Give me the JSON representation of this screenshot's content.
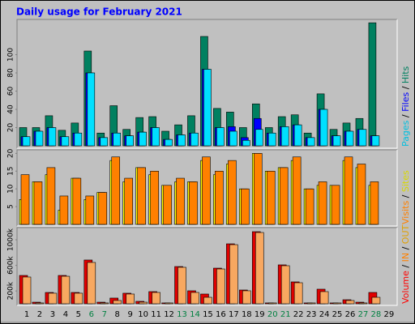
{
  "chart_data": [
    {
      "type": "bar",
      "title": "Daily usage for February 2021",
      "legend_separator": "/",
      "ylim": [
        0,
        136
      ],
      "yticks": [
        20,
        40,
        60,
        80,
        100
      ],
      "series": [
        {
          "name": "Pages",
          "color": "#00e0ff",
          "text_color": "#00c0e0",
          "values": [
            10,
            16,
            20,
            10,
            14,
            80,
            9,
            14,
            11,
            15,
            20,
            7,
            12,
            14,
            84,
            20,
            16,
            6,
            18,
            14,
            21,
            23,
            9,
            40,
            11,
            16,
            18,
            11,
            null
          ]
        },
        {
          "name": "Files",
          "color": "#0000ff",
          "text_color": "#0000ff",
          "values": [
            10,
            16,
            20,
            10,
            14,
            80,
            9,
            14,
            11,
            15,
            20,
            7,
            12,
            14,
            84,
            20,
            21,
            9,
            30,
            14,
            21,
            23,
            9,
            40,
            11,
            16,
            18,
            11,
            null
          ]
        },
        {
          "name": "Hits",
          "color": "#008060",
          "text_color": "#008060",
          "values": [
            20,
            20,
            33,
            17,
            25,
            104,
            14,
            44,
            18,
            31,
            32,
            16,
            23,
            33,
            120,
            41,
            37,
            20,
            46,
            20,
            32,
            34,
            14,
            57,
            18,
            25,
            30,
            135,
            null
          ]
        }
      ]
    },
    {
      "type": "bar",
      "ylim": [
        0,
        21
      ],
      "yticks": [
        5,
        10,
        15,
        20
      ],
      "series": [
        {
          "name": "Visits",
          "color": "#ff8000",
          "text_color": "#ff8000",
          "values": [
            14,
            12,
            16,
            8,
            13,
            8,
            9,
            19,
            13,
            16,
            15,
            11,
            13,
            12,
            19,
            15,
            18,
            10,
            20,
            15,
            16,
            19,
            10,
            12,
            11,
            19,
            17,
            12,
            null
          ]
        },
        {
          "name": "Sites",
          "color": "#ffff00",
          "text_color": "#d8d800",
          "values": [
            7,
            12,
            14,
            4,
            13,
            7,
            9,
            18,
            12,
            16,
            14,
            11,
            12,
            12,
            18,
            14,
            17,
            10,
            20,
            15,
            16,
            18,
            10,
            11,
            11,
            18,
            16,
            11,
            null
          ]
        }
      ]
    },
    {
      "type": "bar",
      "ylim": [
        0,
        1165
      ],
      "yticks": [
        {
          "value": 200,
          "label": "200k"
        },
        {
          "value": 600,
          "label": "600k"
        },
        {
          "value": 1000,
          "label": "1000k"
        }
      ],
      "in_label": {
        "text": "IN",
        "color": "#ff8000"
      },
      "categories": [
        "1",
        "2",
        "3",
        "4",
        "5",
        "6",
        "7",
        "8",
        "9",
        "10",
        "11",
        "12",
        "13",
        "14",
        "15",
        "16",
        "17",
        "18",
        "19",
        "20",
        "21",
        "22",
        "23",
        "24",
        "25",
        "26",
        "27",
        "28",
        "29"
      ],
      "weekend_indices": [
        5,
        6,
        12,
        13,
        19,
        20,
        26,
        27
      ],
      "weekday_color": "#000000",
      "weekend_color": "#008040",
      "series": [
        {
          "name": "Volume",
          "color": "#e00000",
          "text_color": "#ff0000",
          "values": [
            443,
            25,
            177,
            443,
            177,
            684,
            25,
            89,
            165,
            38,
            190,
            13,
            582,
            203,
            152,
            557,
            937,
            215,
            1127,
            13,
            608,
            342,
            13,
            228,
            13,
            63,
            25,
            177,
            null
          ]
        },
        {
          "name": "OUT",
          "color": "#f8a860",
          "text_color": "#e0a000",
          "values": [
            418,
            13,
            165,
            430,
            165,
            646,
            13,
            51,
            152,
            25,
            177,
            13,
            570,
            177,
            101,
            544,
            924,
            203,
            1114,
            13,
            595,
            329,
            13,
            190,
            13,
            51,
            13,
            101,
            null
          ]
        }
      ]
    }
  ]
}
